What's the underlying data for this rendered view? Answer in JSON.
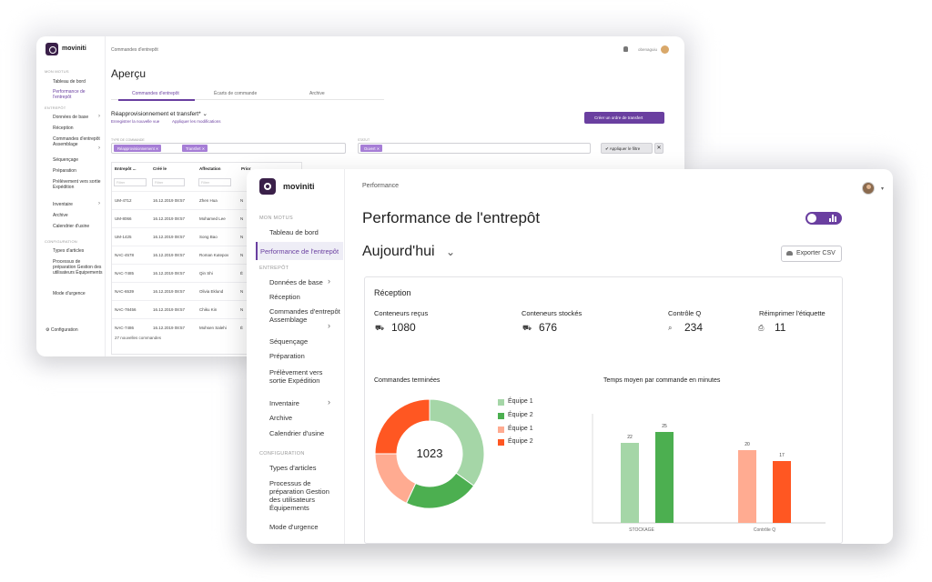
{
  "back": {
    "brand": "moviniti",
    "sidebar": {
      "sec_mon": "MON MOTUS",
      "sec_entrepot": "ENTREPÔT",
      "sec_config": "CONFIGURATION",
      "items": [
        "Tableau de bord",
        "Performance de l'entrepôt",
        "Données de base",
        "Réception",
        "Commandes d'entrepôt Assemblage",
        "Séquençage",
        "Préparation",
        "Prélèvement vers sortie Expédition",
        "Inventaire",
        "Archive",
        "Calendrier d'usine",
        "Types d'articles",
        "Processus de préparation Gestion des utilisateurs Équipements",
        "Mode d'urgence"
      ],
      "config": "⚙ Configuration"
    },
    "breadcrumb": "Commandes d'entrepôt",
    "user": "obenaguiu",
    "title": "Aperçu",
    "tabs": [
      "Commandes d'entrepôt",
      "Écarts de commande",
      "Archive"
    ],
    "subtitle": "Réapprovisionnement et transfert* ⌄",
    "link_save": "Enregistrer la nouvelle vue",
    "link_apply": "Appliquer les modifications",
    "create_btn": "Créer un ordre de transfert",
    "label_type": "TYPE DE COMMANDE",
    "label_status": "STATUT",
    "chips": [
      "Réapprovisionnement ✕",
      "Transfert ✕",
      "Ouvert ✕"
    ],
    "apply_filter": "✔ Appliquer le filtre",
    "clear": "✕",
    "columns": [
      "Entrepôt ...",
      "Créé le",
      "Affectation",
      "Prior"
    ],
    "filter_ph": "Filtrer",
    "rows": [
      [
        "UM-4712",
        "16.12.2019 08:57",
        "Zhen Hua",
        "N"
      ],
      [
        "UM-8066",
        "16.12.2019 08:57",
        "Mohamed Lee",
        "N"
      ],
      [
        "UM-1425",
        "16.12.2019 08:57",
        "Song Bao",
        "N"
      ],
      [
        "NAC-4578",
        "16.12.2019 08:57",
        "Roman Kutepov",
        "N"
      ],
      [
        "NAC-7485",
        "16.12.2019 08:57",
        "Qin Shi",
        "É"
      ],
      [
        "NAC-6539",
        "16.12.2019 08:57",
        "Olivia Eklund",
        "N"
      ],
      [
        "NAC-78456",
        "16.12.2019 08:57",
        "Chiku Kin",
        "N"
      ],
      [
        "NAC-7486",
        "16.12.2019 08:57",
        "Mohsen Salehi",
        "É"
      ]
    ],
    "footer": "27 nouvelles commandes"
  },
  "front": {
    "brand": "moviniti",
    "sidebar": {
      "sec_mon": "MON MOTUS",
      "sec_entrepot": "ENTREPÔT",
      "sec_config": "CONFIGURATION",
      "tableau": "Tableau de bord",
      "perf": "Performance de l'entrepôt",
      "donnees": "Données de base",
      "reception": "Réception",
      "commandes": "Commandes d'entrepôt Assemblage",
      "sequencage": "Séquençage",
      "preparation": "Préparation",
      "prelevement": "Prélèvement vers sortie Expédition",
      "inventaire": "Inventaire",
      "archive": "Archive",
      "calendrier": "Calendrier d'usine",
      "types": "Types d'articles",
      "processus": "Processus de préparation Gestion des utilisateurs Équipements",
      "urgence": "Mode d'urgence"
    },
    "breadcrumb": "Performance",
    "title": "Performance de l'entrepôt",
    "date": "Aujourd'hui",
    "date_caret": "⌄",
    "export": "Exporter CSV",
    "card_title": "Réception",
    "stats": [
      {
        "label": "Conteneurs reçus",
        "icon": "⛟",
        "value": "1080"
      },
      {
        "label": "Conteneurs stockés",
        "icon": "⛟",
        "value": "676"
      },
      {
        "label": "Contrôle Q",
        "icon": "⌕",
        "value": "234"
      },
      {
        "label": "Réimprimer l'étiquette",
        "icon": "⎙",
        "value": "11"
      }
    ],
    "colors": {
      "accent": "#6a3fa0",
      "light_green": "#a5d6a7",
      "green": "#4caf50",
      "salmon": "#ffab91",
      "orange": "#ff5722"
    }
  },
  "chart_data": [
    {
      "type": "pie",
      "title": "Commandes terminées",
      "center_label": "1023",
      "labels": [
        "Équipe 1",
        "Équipe 2",
        "Équipe 1",
        "Équipe 2"
      ],
      "values": [
        35,
        22,
        18,
        25
      ],
      "colors": [
        "#a5d6a7",
        "#4caf50",
        "#ffab91",
        "#ff5722"
      ]
    },
    {
      "type": "bar",
      "title": "Temps moyen par commande en minutes",
      "categories": [
        "STOCKAGE",
        "Contrôle Q"
      ],
      "series": [
        {
          "values": [
            22,
            25
          ],
          "colors": [
            "#a5d6a7",
            "#4caf50"
          ]
        },
        {
          "values": [
            20,
            17
          ],
          "colors": [
            "#ffab91",
            "#ff5722"
          ]
        }
      ],
      "ylim": [
        0,
        30
      ]
    }
  ]
}
